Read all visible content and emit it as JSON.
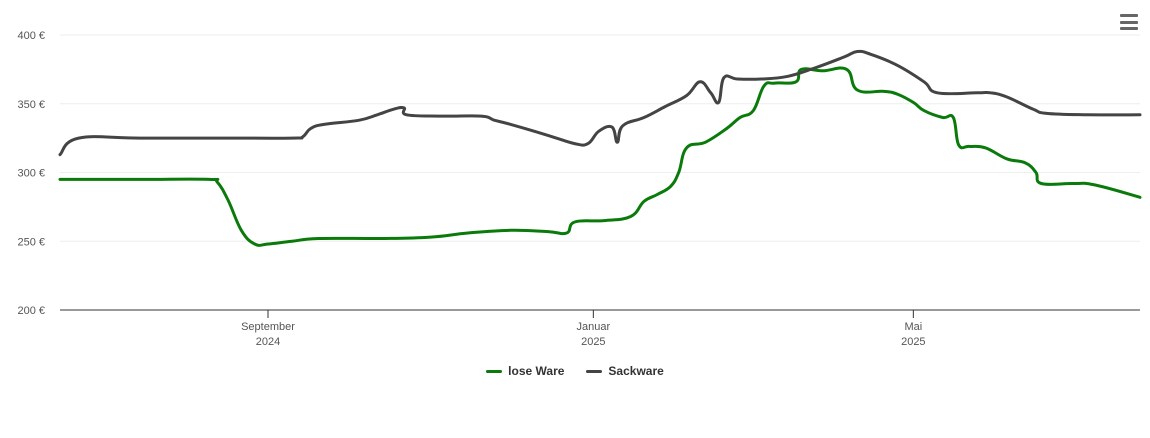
{
  "chart_data": {
    "type": "line",
    "x_unit": "date",
    "xlim": [
      "2024-06-15",
      "2025-07-25"
    ],
    "ylim": [
      200,
      400
    ],
    "yticks": [
      {
        "value": 200,
        "label": "200 €"
      },
      {
        "value": 250,
        "label": "250 €"
      },
      {
        "value": 300,
        "label": "300 €"
      },
      {
        "value": 350,
        "label": "350 €"
      },
      {
        "value": 400,
        "label": "400 €"
      }
    ],
    "xticks": [
      {
        "date": "2024-09-01",
        "month": "September",
        "year": "2024"
      },
      {
        "date": "2025-01-01",
        "month": "Januar",
        "year": "2025"
      },
      {
        "date": "2025-05-01",
        "month": "Mai",
        "year": "2025"
      }
    ],
    "grid": true,
    "legend_position": "bottom",
    "series": [
      {
        "name": "lose Ware",
        "color": "#0a7b0a",
        "points": [
          [
            "2024-06-15",
            295
          ],
          [
            "2024-07-15",
            295
          ],
          [
            "2024-08-10",
            295
          ],
          [
            "2024-08-13",
            293
          ],
          [
            "2024-08-17",
            280
          ],
          [
            "2024-08-22",
            258
          ],
          [
            "2024-08-27",
            248
          ],
          [
            "2024-09-01",
            248
          ],
          [
            "2024-09-10",
            250
          ],
          [
            "2024-09-20",
            252
          ],
          [
            "2024-10-15",
            252
          ],
          [
            "2024-11-01",
            253
          ],
          [
            "2024-11-15",
            256
          ],
          [
            "2024-12-01",
            258
          ],
          [
            "2024-12-15",
            257
          ],
          [
            "2024-12-22",
            256
          ],
          [
            "2024-12-25",
            264
          ],
          [
            "2025-01-05",
            265
          ],
          [
            "2025-01-15",
            268
          ],
          [
            "2025-01-20",
            279
          ],
          [
            "2025-01-25",
            284
          ],
          [
            "2025-01-30",
            290
          ],
          [
            "2025-02-02",
            300
          ],
          [
            "2025-02-05",
            318
          ],
          [
            "2025-02-12",
            322
          ],
          [
            "2025-02-20",
            332
          ],
          [
            "2025-02-25",
            340
          ],
          [
            "2025-03-02",
            345
          ],
          [
            "2025-03-06",
            363
          ],
          [
            "2025-03-10",
            365
          ],
          [
            "2025-03-18",
            366
          ],
          [
            "2025-03-20",
            375
          ],
          [
            "2025-03-28",
            374
          ],
          [
            "2025-04-06",
            375
          ],
          [
            "2025-04-10",
            360
          ],
          [
            "2025-04-20",
            359
          ],
          [
            "2025-04-25",
            357
          ],
          [
            "2025-05-01",
            351
          ],
          [
            "2025-05-05",
            345
          ],
          [
            "2025-05-12",
            340
          ],
          [
            "2025-05-16",
            340
          ],
          [
            "2025-05-18",
            320
          ],
          [
            "2025-05-22",
            319
          ],
          [
            "2025-05-28",
            318
          ],
          [
            "2025-06-05",
            310
          ],
          [
            "2025-06-12",
            307
          ],
          [
            "2025-06-16",
            300
          ],
          [
            "2025-06-18",
            292
          ],
          [
            "2025-06-30",
            292
          ],
          [
            "2025-07-08",
            291
          ],
          [
            "2025-07-25",
            282
          ]
        ]
      },
      {
        "name": "Sackware",
        "color": "#444444",
        "points": [
          [
            "2024-06-15",
            313
          ],
          [
            "2024-06-22",
            325
          ],
          [
            "2024-07-15",
            325
          ],
          [
            "2024-08-15",
            325
          ],
          [
            "2024-09-10",
            325
          ],
          [
            "2024-09-14",
            326
          ],
          [
            "2024-09-17",
            332
          ],
          [
            "2024-09-22",
            335
          ],
          [
            "2024-10-05",
            338
          ],
          [
            "2024-10-12",
            342
          ],
          [
            "2024-10-18",
            346
          ],
          [
            "2024-10-22",
            347
          ],
          [
            "2024-10-23",
            342
          ],
          [
            "2024-11-05",
            341
          ],
          [
            "2024-11-20",
            341
          ],
          [
            "2024-11-25",
            338
          ],
          [
            "2024-12-01",
            335
          ],
          [
            "2024-12-15",
            327
          ],
          [
            "2024-12-25",
            321
          ],
          [
            "2024-12-30",
            321
          ],
          [
            "2025-01-03",
            330
          ],
          [
            "2025-01-08",
            333
          ],
          [
            "2025-01-10",
            322
          ],
          [
            "2025-01-12",
            334
          ],
          [
            "2025-01-20",
            340
          ],
          [
            "2025-01-28",
            348
          ],
          [
            "2025-02-05",
            356
          ],
          [
            "2025-02-10",
            366
          ],
          [
            "2025-02-14",
            358
          ],
          [
            "2025-02-17",
            351
          ],
          [
            "2025-02-19",
            369
          ],
          [
            "2025-02-24",
            368
          ],
          [
            "2025-03-05",
            368
          ],
          [
            "2025-03-15",
            370
          ],
          [
            "2025-03-25",
            376
          ],
          [
            "2025-04-05",
            384
          ],
          [
            "2025-04-10",
            388
          ],
          [
            "2025-04-15",
            386
          ],
          [
            "2025-04-25",
            378
          ],
          [
            "2025-05-05",
            366
          ],
          [
            "2025-05-10",
            358
          ],
          [
            "2025-05-25",
            358
          ],
          [
            "2025-05-30",
            358
          ],
          [
            "2025-06-05",
            355
          ],
          [
            "2025-06-15",
            346
          ],
          [
            "2025-06-20",
            343
          ],
          [
            "2025-07-05",
            342
          ],
          [
            "2025-07-25",
            342
          ]
        ]
      }
    ]
  }
}
